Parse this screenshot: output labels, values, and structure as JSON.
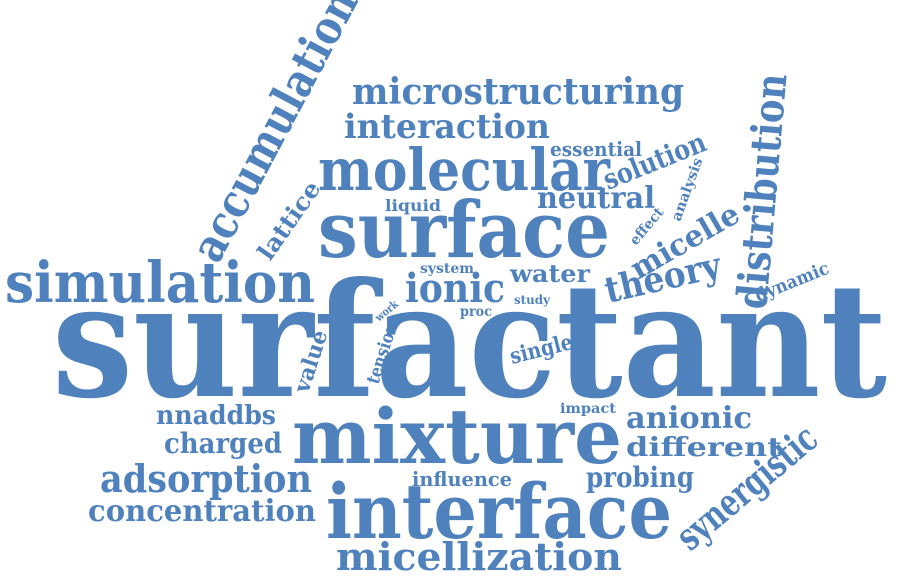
{
  "word_color": "#4f81bd",
  "words": [
    "surfactant",
    "mixture",
    "interface",
    "surface",
    "molecular",
    "simulation",
    "accumulation",
    "distribution",
    "micellization",
    "microstructuring",
    "interaction",
    "adsorption",
    "concentration",
    "synergistic",
    "ionic",
    "theory",
    "anionic",
    "different",
    "charged",
    "nnaddbs",
    "probing",
    "neutral",
    "solution",
    "micelle",
    "water",
    "lattice",
    "essential",
    "influence",
    "single",
    "dynamic",
    "value",
    "tension",
    "liquid",
    "analysis",
    "effect",
    "system",
    "impact",
    "study",
    "proc",
    "work"
  ]
}
